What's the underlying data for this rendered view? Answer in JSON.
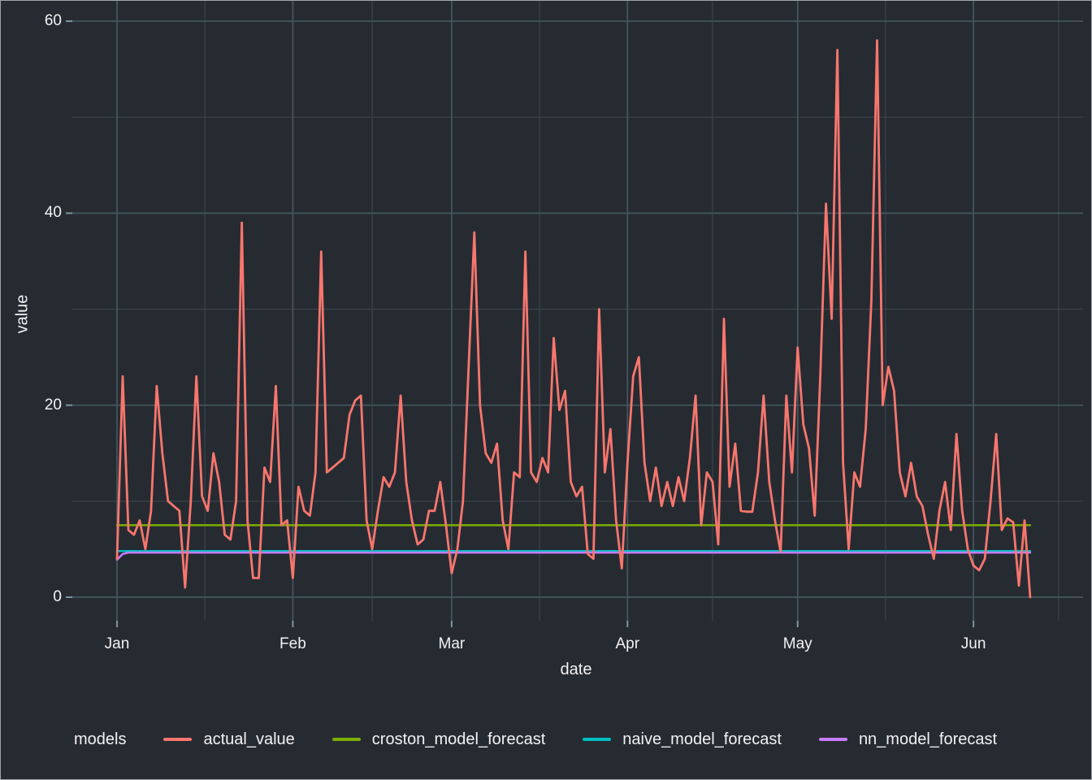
{
  "figure": {
    "background": "#262B32",
    "border_color": "#9EA6AB",
    "text_color": "#F2F2F2",
    "grid_major_color": "#46565F",
    "grid_minor_color": "#39434B",
    "tick_mark_color": "#7E95A0"
  },
  "axes": {
    "y": {
      "title": "value",
      "tick_labels": [
        "0",
        "20",
        "40",
        "60"
      ]
    },
    "x": {
      "title": "date",
      "tick_labels": [
        "Jan",
        "Feb",
        "Mar",
        "Apr",
        "May",
        "Jun"
      ]
    }
  },
  "legend": {
    "title": "models",
    "items": [
      {
        "label": "actual_value",
        "color": "#F8766D"
      },
      {
        "label": "croston_model_forecast",
        "color": "#7CAE00"
      },
      {
        "label": "naive_model_forecast",
        "color": "#00BFC4"
      },
      {
        "label": "nn_model_forecast",
        "color": "#C77CFF"
      }
    ]
  },
  "chart_data": {
    "type": "line",
    "title": "",
    "xlabel": "date",
    "ylabel": "value",
    "x_unit": "daily observations, Jan 1 through ~Jun 11",
    "n_days": 162,
    "ylim": [
      0,
      60
    ],
    "grid": true,
    "legend_position": "bottom",
    "y_major_ticks": [
      0,
      20,
      40,
      60
    ],
    "y_minor_ticks": [
      10,
      30,
      50
    ],
    "month_ticks": [
      {
        "label": "Jan",
        "day": 0
      },
      {
        "label": "Feb",
        "day": 31
      },
      {
        "label": "Mar",
        "day": 59
      },
      {
        "label": "Apr",
        "day": 90
      },
      {
        "label": "May",
        "day": 120
      },
      {
        "label": "Jun",
        "day": 151
      }
    ],
    "month_minor_days": [
      15.5,
      45,
      74.5,
      105,
      135.5,
      166
    ],
    "series": [
      {
        "name": "croston_model_forecast",
        "color": "#7CAE00",
        "width": 2.5,
        "values": [],
        "constant": 7.5
      },
      {
        "name": "naive_model_forecast",
        "color": "#00BFC4",
        "width": 2.5,
        "values": [],
        "constant": 4.8
      },
      {
        "name": "nn_model_forecast",
        "color": "#C77CFF",
        "width": 2.5,
        "values": [
          3.9,
          4.5
        ],
        "constant": 4.65
      },
      {
        "name": "actual_value",
        "color": "#F8766D",
        "width": 2.8,
        "values": [
          4,
          23,
          7,
          6.5,
          8,
          5,
          9,
          22,
          15,
          10,
          9.5,
          9,
          1,
          10,
          23,
          10.5,
          9,
          15,
          12,
          6.5,
          6,
          10,
          39,
          8,
          2,
          2,
          13.5,
          12,
          22,
          7.5,
          8,
          2,
          11.5,
          9,
          8.5,
          13,
          36,
          13,
          13.5,
          14,
          14.5,
          19,
          20.5,
          21,
          8,
          5,
          9,
          12.5,
          11.5,
          13,
          21,
          12,
          8,
          5.5,
          6,
          9,
          9,
          12,
          7.5,
          2.5,
          5,
          10,
          24,
          38,
          20,
          15,
          14,
          16,
          8,
          5,
          13,
          12.5,
          36,
          13,
          12,
          14.5,
          13,
          27,
          19.5,
          21.5,
          12,
          10.5,
          11.5,
          4.5,
          4,
          30,
          13,
          17.5,
          8,
          3,
          14,
          23,
          25,
          14,
          10,
          13.5,
          9.5,
          12,
          9.5,
          12.5,
          10,
          14.5,
          21,
          7.5,
          13,
          12,
          5.5,
          29,
          11.5,
          16,
          9,
          8.9,
          8.9,
          13,
          21,
          12,
          8,
          4.7,
          21,
          13,
          26,
          18,
          15.5,
          8.5,
          23,
          41,
          29,
          57,
          14,
          5,
          13,
          11.5,
          17.5,
          31,
          58,
          20,
          24,
          21.5,
          13,
          10.5,
          14,
          10.5,
          9.5,
          6.5,
          4,
          9,
          12,
          7,
          17,
          9,
          5,
          3.3,
          2.8,
          4,
          10,
          17,
          7,
          8.2,
          7.8,
          1.2,
          8,
          0
        ]
      }
    ]
  }
}
